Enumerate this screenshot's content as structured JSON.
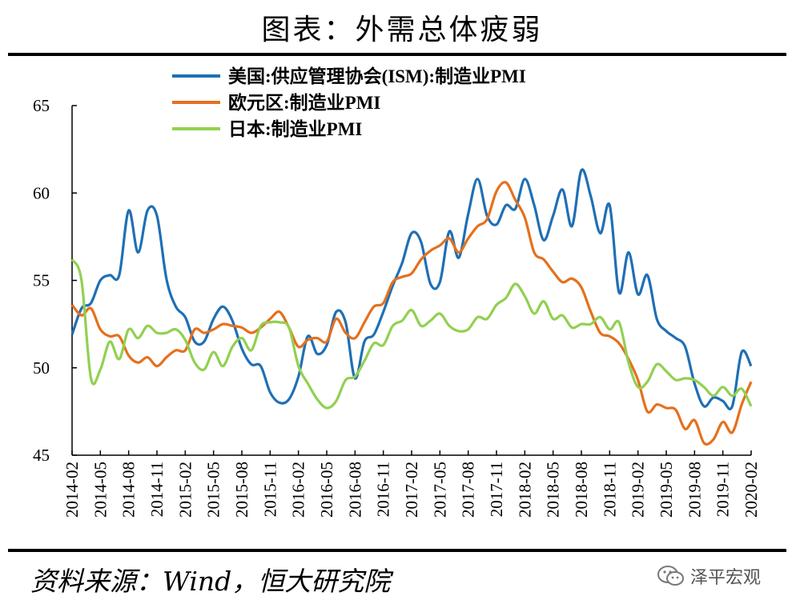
{
  "header": {
    "title": "图表：外需总体疲弱"
  },
  "footer": {
    "source": "资料来源：Wind，恒大研究院",
    "brand": "泽平宏观"
  },
  "chart_data": {
    "type": "line",
    "title": "图表：外需总体疲弱",
    "xlabel": "",
    "ylabel": "",
    "ylim": [
      45,
      65
    ],
    "yticks": [
      45,
      50,
      55,
      60,
      65
    ],
    "grid": false,
    "legend": "top-center",
    "x": [
      "2014-02",
      "2014-03",
      "2014-04",
      "2014-05",
      "2014-06",
      "2014-07",
      "2014-08",
      "2014-09",
      "2014-10",
      "2014-11",
      "2014-12",
      "2015-01",
      "2015-02",
      "2015-03",
      "2015-04",
      "2015-05",
      "2015-06",
      "2015-07",
      "2015-08",
      "2015-09",
      "2015-10",
      "2015-11",
      "2015-12",
      "2016-01",
      "2016-02",
      "2016-03",
      "2016-04",
      "2016-05",
      "2016-06",
      "2016-07",
      "2016-08",
      "2016-09",
      "2016-10",
      "2016-11",
      "2016-12",
      "2017-01",
      "2017-02",
      "2017-03",
      "2017-04",
      "2017-05",
      "2017-06",
      "2017-07",
      "2017-08",
      "2017-09",
      "2017-10",
      "2017-11",
      "2017-12",
      "2018-01",
      "2018-02",
      "2018-03",
      "2018-04",
      "2018-05",
      "2018-06",
      "2018-07",
      "2018-08",
      "2018-09",
      "2018-10",
      "2018-11",
      "2018-12",
      "2019-01",
      "2019-02",
      "2019-03",
      "2019-04",
      "2019-05",
      "2019-06",
      "2019-07",
      "2019-08",
      "2019-09",
      "2019-10",
      "2019-11",
      "2019-12",
      "2020-01",
      "2020-02"
    ],
    "xtick_labels": [
      "2014-02",
      "2014-05",
      "2014-08",
      "2014-11",
      "2015-02",
      "2015-05",
      "2015-08",
      "2015-11",
      "2016-02",
      "2016-05",
      "2016-08",
      "2016-11",
      "2017-02",
      "2017-05",
      "2017-08",
      "2017-11",
      "2018-02",
      "2018-05",
      "2018-08",
      "2018-11",
      "2019-02",
      "2019-05",
      "2019-08",
      "2019-11",
      "2020-02"
    ],
    "series": [
      {
        "name": "美国:供应管理协会(ISM):制造业PMI",
        "color": "#1F6FB5",
        "values": [
          51.9,
          53.4,
          53.7,
          55.0,
          55.3,
          55.3,
          59.0,
          56.6,
          59.0,
          58.7,
          55.1,
          53.5,
          52.9,
          51.5,
          51.5,
          52.8,
          53.5,
          52.7,
          51.1,
          50.2,
          50.1,
          48.6,
          48.0,
          48.2,
          49.5,
          51.8,
          50.8,
          51.3,
          53.2,
          52.6,
          49.4,
          51.5,
          51.9,
          53.2,
          54.7,
          56.0,
          57.7,
          57.2,
          54.8,
          54.9,
          57.8,
          56.3,
          58.8,
          60.8,
          58.7,
          58.2,
          59.3,
          59.1,
          60.8,
          59.3,
          57.3,
          58.7,
          60.2,
          58.1,
          61.3,
          59.8,
          57.7,
          59.3,
          54.3,
          56.6,
          54.2,
          55.3,
          52.8,
          52.1,
          51.7,
          51.2,
          49.1,
          47.8,
          48.3,
          48.1,
          47.8,
          50.9,
          50.1
        ]
      },
      {
        "name": "欧元区:制造业PMI",
        "color": "#E5701D",
        "values": [
          53.6,
          53.0,
          53.4,
          52.2,
          51.8,
          51.8,
          50.7,
          50.3,
          50.6,
          50.1,
          50.6,
          51.0,
          51.0,
          52.2,
          52.0,
          52.2,
          52.5,
          52.4,
          52.3,
          52.0,
          52.3,
          52.8,
          53.2,
          52.3,
          51.2,
          51.6,
          51.7,
          51.5,
          52.8,
          52.0,
          51.7,
          52.6,
          53.5,
          53.7,
          54.9,
          55.2,
          55.4,
          56.2,
          56.7,
          57.0,
          57.4,
          56.6,
          57.4,
          58.1,
          58.5,
          60.1,
          60.6,
          59.6,
          58.6,
          56.6,
          56.2,
          55.5,
          54.9,
          55.1,
          54.6,
          53.2,
          52.0,
          51.8,
          51.4,
          50.5,
          49.3,
          47.5,
          47.9,
          47.7,
          47.6,
          46.5,
          47.0,
          45.7,
          45.9,
          46.9,
          46.3,
          47.9,
          49.2
        ]
      },
      {
        "name": "日本:制造业PMI",
        "color": "#92D050",
        "values": [
          56.2,
          55.0,
          49.4,
          49.9,
          51.5,
          50.5,
          52.2,
          51.7,
          52.4,
          52.0,
          52.0,
          52.2,
          51.6,
          50.3,
          49.9,
          50.9,
          50.1,
          51.2,
          51.7,
          51.0,
          52.4,
          52.6,
          52.6,
          52.3,
          50.1,
          49.1,
          48.2,
          47.7,
          48.1,
          49.3,
          49.5,
          50.4,
          51.4,
          51.3,
          52.4,
          52.7,
          53.3,
          52.4,
          52.7,
          53.1,
          52.4,
          52.1,
          52.2,
          52.9,
          52.8,
          53.6,
          54.0,
          54.8,
          54.1,
          53.1,
          53.8,
          52.8,
          53.0,
          52.3,
          52.5,
          52.5,
          52.9,
          52.2,
          52.6,
          50.3,
          48.9,
          49.2,
          50.2,
          49.8,
          49.3,
          49.4,
          49.3,
          48.9,
          48.4,
          48.9,
          48.4,
          48.8,
          47.8
        ]
      }
    ]
  }
}
